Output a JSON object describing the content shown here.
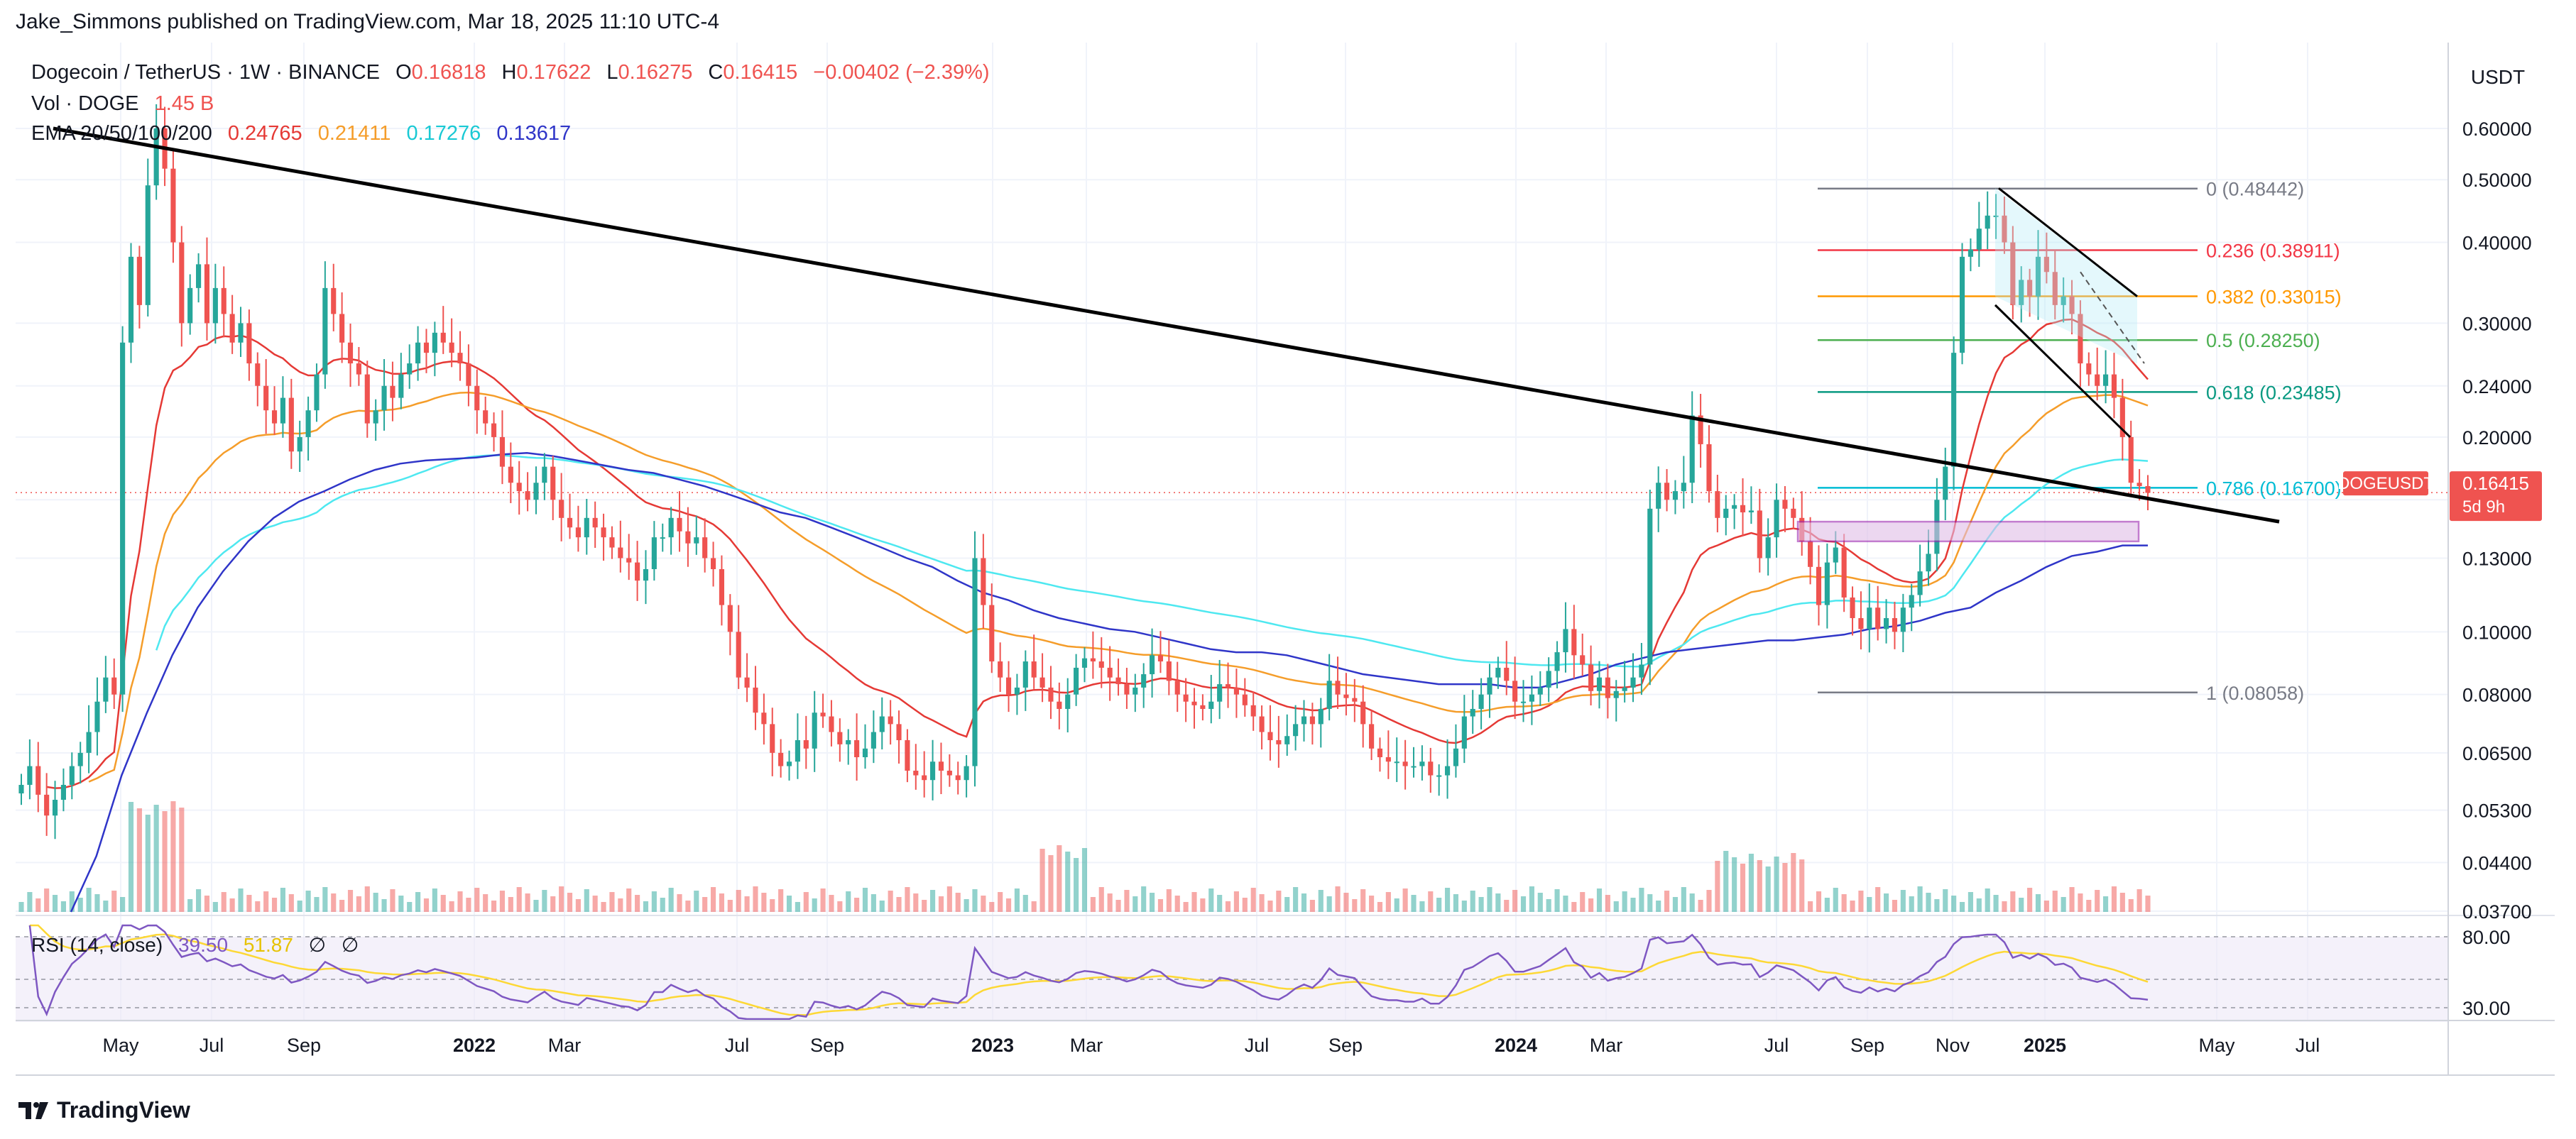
{
  "header": {
    "text": "Jake_Simmons published on TradingView.com, Mar 18, 2025 11:10 UTC-4"
  },
  "legend": {
    "symbol": "Dogecoin / TetherUS · 1W · BINANCE",
    "open_label": "O",
    "open": "0.16818",
    "high_label": "H",
    "high": "0.17622",
    "low_label": "L",
    "low": "0.16275",
    "close_label": "C",
    "close": "0.16415",
    "change": "−0.00402 (−2.39%)",
    "vol_label": "Vol · DOGE",
    "vol_value": "1.45 B",
    "ema_label": "EMA 20/50/100/200",
    "ema20": "0.24765",
    "ema50": "0.21411",
    "ema100": "0.17276",
    "ema200": "0.13617"
  },
  "rsi_legend": {
    "label": "RSI (14, close)",
    "value": "39.50",
    "ma_value": "51.87",
    "sym1": "∅",
    "sym2": "∅"
  },
  "price_axis": {
    "currency": "USDT"
  },
  "price_label": {
    "symbol": "DOGEUSDT",
    "value": "0.16415",
    "countdown": "5d 9h"
  },
  "rsi_axis": {
    "ticks": [
      "80.00",
      "30.00"
    ]
  },
  "footer": {
    "brand": "TradingView"
  },
  "colors": {
    "up": "#26a69a",
    "down": "#ef5350",
    "ema20": "#e53935",
    "ema50": "#f59d2a",
    "ema100": "#4ee8f0",
    "ema200": "#2f35c8",
    "rsi": "#7e57c2",
    "rsi_ma": "#fdd835"
  },
  "chart_data": {
    "type": "candlestick",
    "title": "Dogecoin / TetherUS · 1W · BINANCE",
    "y_scale": "log",
    "ylim": [
      0.0369,
      0.7
    ],
    "price_ticks": [
      "0.60000",
      "0.50000",
      "0.40000",
      "0.30000",
      "0.24000",
      "0.20000",
      "0.16000",
      "0.13000",
      "0.10000",
      "0.08000",
      "0.06500",
      "0.05300",
      "0.04400",
      "0.03700"
    ],
    "x_ticks": [
      "May",
      "Jul",
      "Sep",
      "2022",
      "Mar",
      "Jul",
      "Sep",
      "2023",
      "Mar",
      "Jul",
      "Sep",
      "2024",
      "Mar",
      "Jul",
      "Sep",
      "Nov",
      "2025",
      "May",
      "Jul"
    ],
    "fib_levels": [
      {
        "label": "0 (0.48442)",
        "ratio": 0,
        "price": 0.48442,
        "color": "#787b86"
      },
      {
        "label": "0.236 (0.38911)",
        "ratio": 0.236,
        "price": 0.38911,
        "color": "#f23645"
      },
      {
        "label": "0.382 (0.33015)",
        "ratio": 0.382,
        "price": 0.33015,
        "color": "#ff9800"
      },
      {
        "label": "0.5 (0.28250)",
        "ratio": 0.5,
        "price": 0.2825,
        "color": "#4caf50"
      },
      {
        "label": "0.618 (0.23485)",
        "ratio": 0.618,
        "price": 0.23485,
        "color": "#089981"
      },
      {
        "label": "0.786 (0.16700)",
        "ratio": 0.786,
        "price": 0.167,
        "color": "#00bcd4"
      },
      {
        "label": "1 (0.08058)",
        "ratio": 1,
        "price": 0.08058,
        "color": "#787b86"
      }
    ],
    "trendline": {
      "from": [
        0,
        0.6
      ],
      "to": [
        218,
        0.148
      ]
    },
    "candles_close": [
      0.058,
      0.062,
      0.056,
      0.052,
      0.055,
      0.058,
      0.062,
      0.065,
      0.07,
      0.078,
      0.085,
      0.08,
      0.28,
      0.38,
      0.32,
      0.49,
      0.6,
      0.52,
      0.4,
      0.3,
      0.34,
      0.37,
      0.3,
      0.34,
      0.31,
      0.28,
      0.3,
      0.26,
      0.24,
      0.22,
      0.21,
      0.23,
      0.19,
      0.2,
      0.22,
      0.25,
      0.34,
      0.31,
      0.28,
      0.26,
      0.25,
      0.21,
      0.22,
      0.24,
      0.23,
      0.25,
      0.26,
      0.28,
      0.27,
      0.29,
      0.28,
      0.27,
      0.26,
      0.24,
      0.22,
      0.21,
      0.2,
      0.18,
      0.17,
      0.165,
      0.16,
      0.17,
      0.18,
      0.16,
      0.15,
      0.145,
      0.14,
      0.15,
      0.145,
      0.14,
      0.135,
      0.13,
      0.128,
      0.12,
      0.125,
      0.14,
      0.14,
      0.15,
      0.143,
      0.137,
      0.14,
      0.13,
      0.125,
      0.11,
      0.1,
      0.085,
      0.082,
      0.075,
      0.072,
      0.065,
      0.062,
      0.063,
      0.068,
      0.066,
      0.075,
      0.074,
      0.07,
      0.067,
      0.068,
      0.064,
      0.066,
      0.07,
      0.074,
      0.072,
      0.068,
      0.061,
      0.06,
      0.059,
      0.063,
      0.061,
      0.06,
      0.059,
      0.062,
      0.13,
      0.11,
      0.09,
      0.085,
      0.08,
      0.082,
      0.09,
      0.085,
      0.082,
      0.078,
      0.076,
      0.08,
      0.088,
      0.091,
      0.09,
      0.088,
      0.085,
      0.083,
      0.08,
      0.082,
      0.086,
      0.092,
      0.09,
      0.084,
      0.08,
      0.078,
      0.077,
      0.076,
      0.078,
      0.083,
      0.082,
      0.08,
      0.077,
      0.074,
      0.07,
      0.068,
      0.067,
      0.069,
      0.072,
      0.074,
      0.072,
      0.076,
      0.084,
      0.08,
      0.079,
      0.078,
      0.072,
      0.066,
      0.064,
      0.063,
      0.063,
      0.062,
      0.062,
      0.063,
      0.06,
      0.06,
      0.062,
      0.066,
      0.074,
      0.076,
      0.08,
      0.085,
      0.088,
      0.084,
      0.078,
      0.078,
      0.08,
      0.082,
      0.087,
      0.093,
      0.101,
      0.092,
      0.089,
      0.081,
      0.085,
      0.079,
      0.081,
      0.082,
      0.085,
      0.089,
      0.155,
      0.17,
      0.16,
      0.165,
      0.17,
      0.216,
      0.195,
      0.165,
      0.15,
      0.155,
      0.157,
      0.153,
      0.154,
      0.13,
      0.14,
      0.16,
      0.155,
      0.15,
      0.138,
      0.126,
      0.11,
      0.128,
      0.135,
      0.113,
      0.105,
      0.101,
      0.109,
      0.101,
      0.105,
      0.1,
      0.109,
      0.114,
      0.124,
      0.132,
      0.16,
      0.18,
      0.27,
      0.38,
      0.39,
      0.42,
      0.44,
      0.44,
      0.4,
      0.32,
      0.35,
      0.33,
      0.38,
      0.36,
      0.32,
      0.33,
      0.31,
      0.26,
      0.25,
      0.24,
      0.25,
      0.23,
      0.2,
      0.17,
      0.168,
      0.164
    ],
    "ema200": [
      0.0369,
      0.045,
      0.06,
      0.075,
      0.092,
      0.109,
      0.124,
      0.138,
      0.15,
      0.159,
      0.165,
      0.172,
      0.178,
      0.182,
      0.184,
      0.185,
      0.186,
      0.188,
      0.189,
      0.187,
      0.184,
      0.181,
      0.178,
      0.176,
      0.172,
      0.168,
      0.163,
      0.158,
      0.153,
      0.15,
      0.145,
      0.14,
      0.135,
      0.13,
      0.126,
      0.12,
      0.115,
      0.112,
      0.108,
      0.105,
      0.103,
      0.101,
      0.1,
      0.098,
      0.096,
      0.094,
      0.093,
      0.093,
      0.092,
      0.09,
      0.088,
      0.086,
      0.085,
      0.084,
      0.083,
      0.083,
      0.083,
      0.082,
      0.082,
      0.084,
      0.086,
      0.089,
      0.091,
      0.093,
      0.094,
      0.095,
      0.096,
      0.097,
      0.097,
      0.098,
      0.099,
      0.101,
      0.102,
      0.104,
      0.107,
      0.109,
      0.115,
      0.12,
      0.126,
      0.131,
      0.133,
      0.136,
      0.136
    ]
  }
}
